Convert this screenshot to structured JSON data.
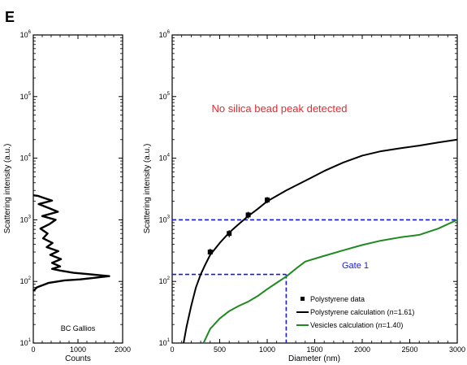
{
  "panel_letter": "E",
  "chart_data": [
    {
      "type": "line",
      "instrument_label": "BC Gallios",
      "xlabel": "Counts",
      "ylabel": "Scattering intensity (a.u.)",
      "xlim": [
        0,
        2000
      ],
      "ylim": [
        10,
        1000000
      ],
      "yscale": "log",
      "x_ticks": [
        "0",
        "1000",
        "2000"
      ],
      "y_ticks": [
        {
          "base": "10",
          "exp": "1"
        },
        {
          "base": "10",
          "exp": "2"
        },
        {
          "base": "10",
          "exp": "3"
        },
        {
          "base": "10",
          "exp": "4"
        },
        {
          "base": "10",
          "exp": "5"
        },
        {
          "base": "10",
          "exp": "6"
        }
      ],
      "series": [
        {
          "color": "#000000",
          "points": [
            [
              0,
              70
            ],
            [
              80,
              80
            ],
            [
              350,
              95
            ],
            [
              700,
              104
            ],
            [
              1050,
              108
            ],
            [
              1400,
              115
            ],
            [
              1700,
              122
            ],
            [
              1300,
              130
            ],
            [
              900,
              138
            ],
            [
              600,
              150
            ],
            [
              420,
              160
            ],
            [
              600,
              175
            ],
            [
              420,
              200
            ],
            [
              620,
              230
            ],
            [
              380,
              270
            ],
            [
              560,
              310
            ],
            [
              300,
              360
            ],
            [
              430,
              420
            ],
            [
              220,
              500
            ],
            [
              320,
              600
            ],
            [
              160,
              720
            ],
            [
              360,
              850
            ],
            [
              500,
              1000
            ],
            [
              200,
              1150
            ],
            [
              550,
              1350
            ],
            [
              350,
              1550
            ],
            [
              120,
              1800
            ],
            [
              420,
              2050
            ],
            [
              250,
              2250
            ],
            [
              100,
              2450
            ],
            [
              0,
              2500
            ]
          ]
        }
      ]
    },
    {
      "type": "line",
      "xlabel": "Diameter (nm)",
      "ylabel": "Scattering intensity (a.u.)",
      "xlim": [
        0,
        3000
      ],
      "ylim": [
        10,
        1000000
      ],
      "yscale": "log",
      "x_ticks": [
        "0",
        "500",
        "1000",
        "1500",
        "2000",
        "2500",
        "3000"
      ],
      "y_ticks": [
        {
          "base": "10",
          "exp": "1"
        },
        {
          "base": "10",
          "exp": "2"
        },
        {
          "base": "10",
          "exp": "3"
        },
        {
          "base": "10",
          "exp": "4"
        },
        {
          "base": "10",
          "exp": "5"
        },
        {
          "base": "10",
          "exp": "6"
        }
      ],
      "annotation": "No silica bead peak detected",
      "gate_label": "Gate 1",
      "gate": {
        "x_max": 1200,
        "y_min": 130,
        "y_max": 1000
      },
      "gate_color": "#1a1ad6",
      "legend_position": "bottom-right",
      "series": [
        {
          "name": "Polystyrene data",
          "kind": "markers",
          "color": "#000000",
          "x": [
            400,
            600,
            800,
            1000
          ],
          "y": [
            300,
            600,
            1200,
            2100
          ],
          "err": [
            40,
            80,
            150,
            250
          ]
        },
        {
          "name": "Polystyrene calculation (n=1.61)",
          "legend_parts": [
            "Polystyrene calculation (",
            "n",
            "=1.61)"
          ],
          "kind": "line",
          "color": "#000000",
          "x": [
            120,
            150,
            200,
            250,
            300,
            350,
            400,
            500,
            600,
            700,
            800,
            900,
            1000,
            1200,
            1400,
            1600,
            1800,
            2000,
            2200,
            2400,
            2600,
            2800,
            3000
          ],
          "y": [
            10,
            18,
            40,
            80,
            130,
            190,
            270,
            420,
            620,
            850,
            1150,
            1500,
            2000,
            3000,
            4300,
            6200,
            8500,
            11000,
            13000,
            14500,
            16000,
            18000,
            20000
          ]
        },
        {
          "name": "Vesicles calculation (n=1.40)",
          "legend_parts": [
            "Vesicles calculation (",
            "n",
            "=1.40)"
          ],
          "kind": "line",
          "color": "#1f8a1f",
          "x": [
            330,
            400,
            500,
            600,
            700,
            800,
            900,
            1000,
            1100,
            1200,
            1300,
            1400,
            1600,
            1800,
            2000,
            2200,
            2400,
            2600,
            2800,
            3000
          ],
          "y": [
            10,
            17,
            25,
            33,
            40,
            47,
            58,
            75,
            95,
            120,
            160,
            210,
            260,
            320,
            390,
            460,
            520,
            570,
            720,
            1000
          ]
        }
      ]
    }
  ]
}
